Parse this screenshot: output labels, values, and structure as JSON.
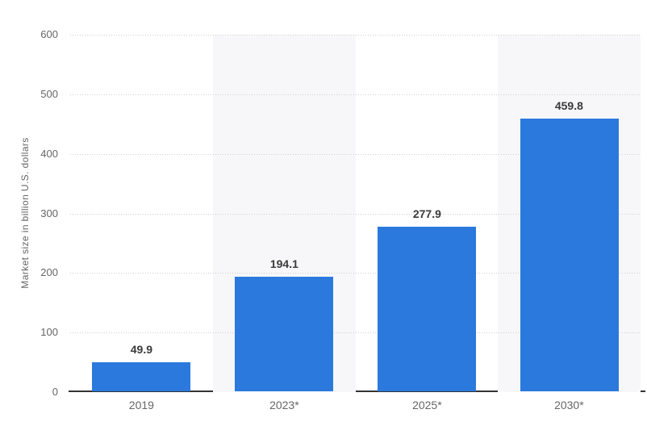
{
  "chart_data": {
    "type": "bar",
    "title": "",
    "categories": [
      "2019",
      "2023*",
      "2025*",
      "2030*"
    ],
    "values": [
      49.9,
      194.1,
      277.9,
      459.8
    ],
    "value_labels": [
      "49.9",
      "194.1",
      "277.9",
      "459.8"
    ],
    "xlabel": "",
    "ylabel": "Market size in billion U.S. dollars",
    "ylim": [
      0,
      600
    ],
    "yticks": [
      0,
      100,
      200,
      300,
      400,
      500,
      600
    ],
    "grid": "horizontal-dotted",
    "legend_position": "none",
    "banded_column_indices": [
      1,
      3
    ],
    "colors": {
      "bar": "#2b79dd",
      "column_band": "#f7f7f9",
      "gridline": "#cfcfd4",
      "axis_line": "#333333",
      "tick_label": "#666666",
      "category_label": "#666666",
      "value_label": "#3a3a3a",
      "y_axis_title": "#666666",
      "background": "#ffffff"
    }
  }
}
